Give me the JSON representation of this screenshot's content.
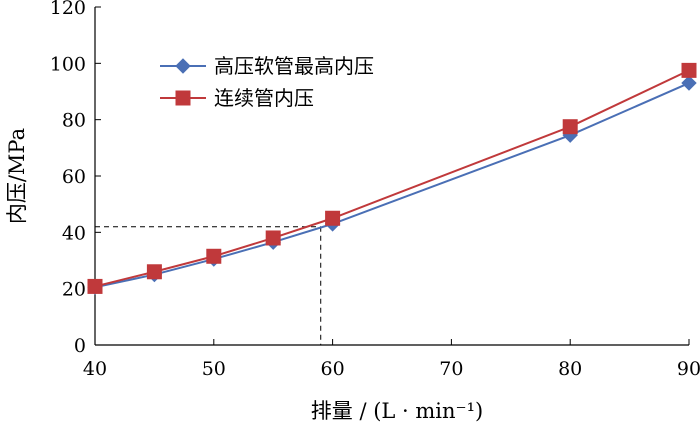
{
  "chart_data": {
    "type": "line",
    "xlabel": "排量 / (L · min⁻¹)",
    "ylabel": "内压/MPa",
    "xlim": [
      40,
      90
    ],
    "ylim": [
      0,
      120
    ],
    "x_ticks": [
      40,
      50,
      60,
      70,
      80,
      90
    ],
    "y_ticks": [
      0,
      20,
      40,
      60,
      80,
      100,
      120
    ],
    "x_tick_labels": [
      "40",
      "50",
      "60",
      "70",
      "80",
      "90"
    ],
    "y_tick_labels": [
      "0",
      "20",
      "40",
      "60",
      "80",
      "100",
      "120"
    ],
    "grid": false,
    "legend_position": "top-left",
    "series": [
      {
        "name": "高压软管最高内压",
        "marker": "diamond",
        "color": "#4a6fb5",
        "x": [
          40,
          45,
          50,
          55,
          60,
          80,
          90
        ],
        "y": [
          20.5,
          25,
          30.5,
          36.5,
          43,
          74.5,
          93
        ]
      },
      {
        "name": "连续管内压",
        "marker": "square",
        "color": "#c0393b",
        "x": [
          40,
          45,
          50,
          55,
          60,
          80,
          90
        ],
        "y": [
          20.8,
          26,
          31.5,
          38,
          45,
          77.5,
          97.5
        ]
      }
    ],
    "reference_point": {
      "x": 59,
      "y": 42
    }
  }
}
